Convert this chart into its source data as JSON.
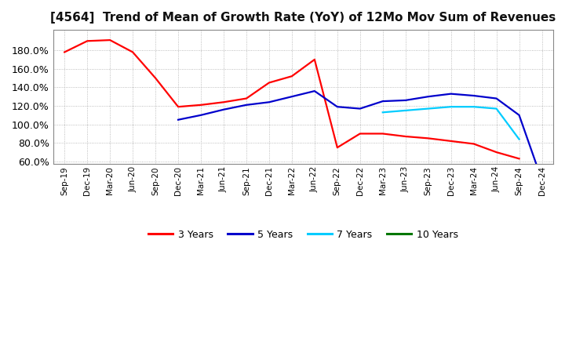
{
  "title": "[4564]  Trend of Mean of Growth Rate (YoY) of 12Mo Mov Sum of Revenues",
  "title_fontsize": 11,
  "background_color": "#ffffff",
  "plot_bg_color": "#ffffff",
  "grid_color": "#aaaaaa",
  "ylim": [
    57,
    202
  ],
  "yticks": [
    60.0,
    80.0,
    100.0,
    120.0,
    140.0,
    160.0,
    180.0
  ],
  "x_labels": [
    "Sep-19",
    "Dec-19",
    "Mar-20",
    "Jun-20",
    "Sep-20",
    "Dec-20",
    "Mar-21",
    "Jun-21",
    "Sep-21",
    "Dec-21",
    "Mar-22",
    "Jun-22",
    "Sep-22",
    "Dec-22",
    "Mar-23",
    "Jun-23",
    "Sep-23",
    "Dec-23",
    "Mar-24",
    "Jun-24",
    "Sep-24",
    "Dec-24"
  ],
  "series": {
    "3 Years": {
      "color": "#ff0000",
      "linewidth": 1.6,
      "data": [
        178,
        190,
        191,
        178,
        150,
        119,
        121,
        124,
        128,
        145,
        152,
        170,
        75,
        90,
        90,
        87,
        85,
        82,
        79,
        70,
        63,
        null
      ]
    },
    "5 Years": {
      "color": "#0000cc",
      "linewidth": 1.6,
      "data": [
        null,
        null,
        null,
        null,
        null,
        105,
        110,
        116,
        121,
        124,
        130,
        136,
        119,
        117,
        125,
        126,
        130,
        133,
        131,
        128,
        110,
        40
      ]
    },
    "7 Years": {
      "color": "#00ccff",
      "linewidth": 1.6,
      "data": [
        null,
        null,
        null,
        null,
        null,
        null,
        null,
        null,
        null,
        null,
        null,
        null,
        null,
        null,
        113,
        115,
        117,
        119,
        119,
        117,
        84,
        null
      ]
    },
    "10 Years": {
      "color": "#007700",
      "linewidth": 1.6,
      "data": [
        null,
        null,
        null,
        null,
        null,
        null,
        null,
        null,
        null,
        null,
        null,
        null,
        null,
        null,
        null,
        null,
        null,
        null,
        null,
        null,
        null,
        null
      ]
    }
  },
  "legend_labels": [
    "3 Years",
    "5 Years",
    "7 Years",
    "10 Years"
  ],
  "legend_colors": [
    "#ff0000",
    "#0000cc",
    "#00ccff",
    "#007700"
  ]
}
